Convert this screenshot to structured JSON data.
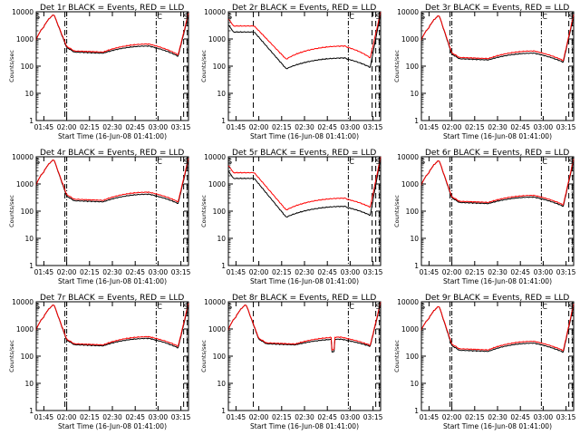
{
  "chart_data": [
    {
      "type": "line",
      "title": "Det 1r BLACK = Events, RED = LLD",
      "xlabel": "Start Time (16-Jun-08 01:41:00)",
      "ylabel": "Counts/sec",
      "xlim": [
        1.6667,
        3.3333
      ],
      "ylim": [
        1,
        10000
      ],
      "yscale": "log",
      "xticks": [
        "01:45",
        "02:00",
        "02:15",
        "02:30",
        "02:45",
        "03:00",
        "03:15"
      ],
      "yticks": [
        "1",
        "10",
        "100",
        "1000",
        "10000"
      ],
      "flags": [
        "S",
        "C",
        "S"
      ],
      "series": [
        {
          "name": "Events",
          "color": "#000000",
          "shape": "A",
          "peak": 8000,
          "floor": 300,
          "bump": 550,
          "drop": 230,
          "trail": 8000
        },
        {
          "name": "LLD",
          "color": "#ff0000",
          "shape": "A",
          "peak": 8000,
          "floor": 330,
          "bump": 650,
          "drop": 260,
          "trail": 9000
        }
      ],
      "lines_dash": [
        1.98,
        3.28,
        3.32
      ],
      "lines_dashdot": [
        2.0,
        2.98
      ]
    },
    {
      "type": "line",
      "title": "Det 2r BLACK = Events, RED = LLD",
      "xlabel": "Start Time (16-Jun-08 01:41:00)",
      "ylabel": "Counts/sec",
      "xlim": [
        1.6667,
        3.3333
      ],
      "ylim": [
        1,
        10000
      ],
      "yscale": "log",
      "xticks": [
        "01:45",
        "02:00",
        "02:15",
        "02:30",
        "02:45",
        "03:00",
        "03:15"
      ],
      "yticks": [
        "1",
        "10",
        "100",
        "1000",
        "10000"
      ],
      "flags": [
        "S",
        "C",
        "S"
      ],
      "series": [
        {
          "name": "Events",
          "color": "#000000",
          "shape": "B",
          "start": 1800,
          "floor": 80,
          "bump": 200,
          "drop": 90,
          "trail": 9000
        },
        {
          "name": "LLD",
          "color": "#ff0000",
          "shape": "B",
          "start": 3000,
          "floor": 180,
          "bump": 550,
          "drop": 200,
          "trail": 10000
        }
      ],
      "lines_dash": [
        1.94,
        3.24,
        3.28,
        3.32
      ],
      "lines_dashdot": [
        2.98
      ]
    },
    {
      "type": "line",
      "title": "Det 3r BLACK = Events, RED = LLD",
      "xlabel": "Start Time (16-Jun-08 01:41:00)",
      "ylabel": "Counts/sec",
      "xlim": [
        1.6667,
        3.3333
      ],
      "ylim": [
        1,
        10000
      ],
      "yscale": "log",
      "xticks": [
        "01:45",
        "02:00",
        "02:15",
        "02:30",
        "02:45",
        "03:00",
        "03:15"
      ],
      "yticks": [
        "1",
        "10",
        "100",
        "1000",
        "10000"
      ],
      "flags": [
        "S",
        "C",
        "S"
      ],
      "series": [
        {
          "name": "Events",
          "color": "#000000",
          "shape": "A",
          "peak": 7500,
          "floor": 170,
          "bump": 300,
          "drop": 140,
          "trail": 7000
        },
        {
          "name": "LLD",
          "color": "#ff0000",
          "shape": "A",
          "peak": 7500,
          "floor": 190,
          "bump": 360,
          "drop": 160,
          "trail": 8000
        }
      ],
      "lines_dash": [
        1.98,
        3.28,
        3.32
      ],
      "lines_dashdot": [
        2.0,
        2.98
      ]
    },
    {
      "type": "line",
      "title": "Det 4r BLACK = Events, RED = LLD",
      "xlabel": "Start Time (16-Jun-08 01:41:00)",
      "ylabel": "Counts/sec",
      "xlim": [
        1.6667,
        3.3333
      ],
      "ylim": [
        1,
        10000
      ],
      "yscale": "log",
      "xticks": [
        "01:45",
        "02:00",
        "02:15",
        "02:30",
        "02:45",
        "03:00",
        "03:15"
      ],
      "yticks": [
        "1",
        "10",
        "100",
        "1000",
        "10000"
      ],
      "flags": [
        "S",
        "C",
        "S"
      ],
      "series": [
        {
          "name": "Events",
          "color": "#000000",
          "shape": "A",
          "peak": 8000,
          "floor": 220,
          "bump": 420,
          "drop": 190,
          "trail": 8000
        },
        {
          "name": "LLD",
          "color": "#ff0000",
          "shape": "A",
          "peak": 8000,
          "floor": 250,
          "bump": 500,
          "drop": 220,
          "trail": 9000
        }
      ],
      "lines_dash": [
        1.98,
        3.28,
        3.32
      ],
      "lines_dashdot": [
        2.0,
        2.98
      ]
    },
    {
      "type": "line",
      "title": "Det 5r BLACK = Events, RED = LLD",
      "xlabel": "Start Time (16-Jun-08 01:41:00)",
      "ylabel": "Counts/sec",
      "xlim": [
        1.6667,
        3.3333
      ],
      "ylim": [
        1,
        10000
      ],
      "yscale": "log",
      "xticks": [
        "01:45",
        "02:00",
        "02:15",
        "02:30",
        "02:45",
        "03:00",
        "03:15"
      ],
      "yticks": [
        "1",
        "10",
        "100",
        "1000",
        "10000"
      ],
      "flags": [
        "S",
        "C",
        "S"
      ],
      "series": [
        {
          "name": "Events",
          "color": "#000000",
          "shape": "B",
          "start": 1600,
          "floor": 60,
          "bump": 150,
          "drop": 70,
          "trail": 9000
        },
        {
          "name": "LLD",
          "color": "#ff0000",
          "shape": "B",
          "start": 2600,
          "floor": 110,
          "bump": 300,
          "drop": 140,
          "trail": 10000
        }
      ],
      "lines_dash": [
        1.94,
        3.24,
        3.28,
        3.32
      ],
      "lines_dashdot": [
        2.98
      ]
    },
    {
      "type": "line",
      "title": "Det 6r BLACK = Events, RED = LLD",
      "xlabel": "Start Time (16-Jun-08 01:41:00)",
      "ylabel": "Counts/sec",
      "xlim": [
        1.6667,
        3.3333
      ],
      "ylim": [
        1,
        10000
      ],
      "yscale": "log",
      "xticks": [
        "01:45",
        "02:00",
        "02:15",
        "02:30",
        "02:45",
        "03:00",
        "03:15"
      ],
      "yticks": [
        "1",
        "10",
        "100",
        "1000",
        "10000"
      ],
      "flags": [
        "S",
        "C",
        "S"
      ],
      "series": [
        {
          "name": "Events",
          "color": "#000000",
          "shape": "A",
          "peak": 7500,
          "floor": 190,
          "bump": 330,
          "drop": 150,
          "trail": 7500
        },
        {
          "name": "LLD",
          "color": "#ff0000",
          "shape": "A",
          "peak": 7500,
          "floor": 210,
          "bump": 380,
          "drop": 170,
          "trail": 8500
        }
      ],
      "lines_dash": [
        1.98,
        3.28,
        3.32
      ],
      "lines_dashdot": [
        2.0,
        2.98
      ]
    },
    {
      "type": "line",
      "title": "Det 7r BLACK = Events, RED = LLD",
      "xlabel": "Start Time (16-Jun-08 01:41:00)",
      "ylabel": "Counts/sec",
      "xlim": [
        1.6667,
        3.3333
      ],
      "ylim": [
        1,
        10000
      ],
      "yscale": "log",
      "xticks": [
        "01:45",
        "02:00",
        "02:15",
        "02:30",
        "02:45",
        "03:00",
        "03:15"
      ],
      "yticks": [
        "1",
        "10",
        "100",
        "1000",
        "10000"
      ],
      "flags": [
        "S",
        "C",
        "S"
      ],
      "series": [
        {
          "name": "Events",
          "color": "#000000",
          "shape": "A",
          "peak": 8000,
          "floor": 240,
          "bump": 450,
          "drop": 200,
          "trail": 8000
        },
        {
          "name": "LLD",
          "color": "#ff0000",
          "shape": "A",
          "peak": 8000,
          "floor": 260,
          "bump": 520,
          "drop": 230,
          "trail": 9000
        }
      ],
      "lines_dash": [
        1.98,
        3.28,
        3.32
      ],
      "lines_dashdot": [
        2.0,
        2.98
      ]
    },
    {
      "type": "line",
      "title": "Det 8r BLACK = Events, RED = LLD",
      "xlabel": "Start Time (16-Jun-08 01:41:00)",
      "ylabel": "Counts/sec",
      "xlim": [
        1.6667,
        3.3333
      ],
      "ylim": [
        1,
        10000
      ],
      "yscale": "log",
      "xticks": [
        "01:45",
        "02:00",
        "02:15",
        "02:30",
        "02:45",
        "03:00",
        "03:15"
      ],
      "yticks": [
        "1",
        "10",
        "100",
        "1000",
        "10000"
      ],
      "flags": [
        "S",
        "C",
        "S"
      ],
      "series": [
        {
          "name": "Events",
          "color": "#000000",
          "shape": "C",
          "peak": 8000,
          "floor": 260,
          "bump": 420,
          "drop": 230,
          "trail": 9000
        },
        {
          "name": "LLD",
          "color": "#ff0000",
          "shape": "C",
          "peak": 8000,
          "floor": 280,
          "bump": 500,
          "drop": 250,
          "trail": 10000
        }
      ],
      "lines_dash": [
        1.94,
        3.28,
        3.32
      ],
      "lines_dashdot": [
        2.98
      ]
    },
    {
      "type": "line",
      "title": "Det 9r BLACK = Events, RED = LLD",
      "xlabel": "Start Time (16-Jun-08 01:41:00)",
      "ylabel": "Counts/sec",
      "xlim": [
        1.6667,
        3.3333
      ],
      "ylim": [
        1,
        10000
      ],
      "yscale": "log",
      "xticks": [
        "01:45",
        "02:00",
        "02:15",
        "02:30",
        "02:45",
        "03:00",
        "03:15"
      ],
      "yticks": [
        "1",
        "10",
        "100",
        "1000",
        "10000"
      ],
      "flags": [
        "S",
        "C",
        "S"
      ],
      "series": [
        {
          "name": "Events",
          "color": "#000000",
          "shape": "A",
          "peak": 7000,
          "floor": 150,
          "bump": 300,
          "drop": 140,
          "trail": 7500
        },
        {
          "name": "LLD",
          "color": "#ff0000",
          "shape": "A",
          "peak": 7000,
          "floor": 170,
          "bump": 350,
          "drop": 160,
          "trail": 8500
        }
      ],
      "lines_dash": [
        1.98,
        3.28,
        3.32
      ],
      "lines_dashdot": [
        2.0,
        2.98
      ]
    }
  ]
}
